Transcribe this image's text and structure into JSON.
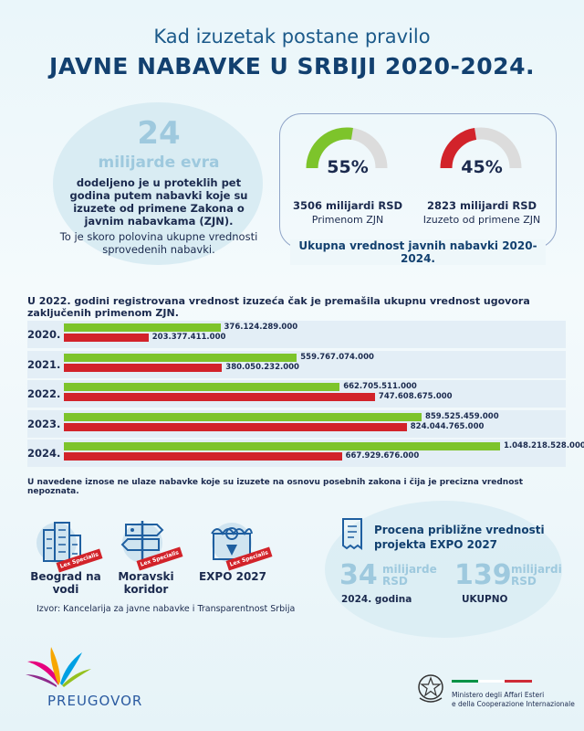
{
  "header": {
    "subtitle": "Kad izuzetak postane pravilo",
    "title": "JAVNE NABAVKE U SRBIJI 2020-2024."
  },
  "summary": {
    "amount": "24",
    "unit": "milijarde evra",
    "text_bold": "dodeljeno je u proteklih pet godina putem nabavki koje su izuzete od primene Zakona o javnim nabavkama (ZJN).",
    "text_regular": "To je skoro polovina ukupne vrednosti sprovedenih nabavki."
  },
  "gauges": {
    "caption": "Ukupna vrednost javnih nabavki 2020-2024.",
    "items": [
      {
        "percent": "55%",
        "fraction": 0.55,
        "color": "#7dc42b",
        "value": "3506 milijardi RSD",
        "label": "Primenom ZJN"
      },
      {
        "percent": "45%",
        "fraction": 0.45,
        "color": "#d2232a",
        "value": "2823 milijardi RSD",
        "label": "Izuzeto od primene ZJN"
      }
    ]
  },
  "chart_data": {
    "type": "bar",
    "title": "U 2022. godini registrovana vrednost izuzeća čak je premašila ukupnu vrednost ugovora zaključenih primenom ZJN.",
    "categories": [
      "2020.",
      "2021.",
      "2022.",
      "2023.",
      "2024."
    ],
    "series": [
      {
        "color": "#7dc42b",
        "values": [
          376124289000,
          559767074000,
          662705511000,
          859525459000,
          1048218528000
        ],
        "labels": [
          "376.124.289.000",
          "559.767.074.000",
          "662.705.511.000",
          "859.525.459.000",
          "1.048.218.528.000"
        ]
      },
      {
        "color": "#d2232a",
        "values": [
          203377411000,
          380050232000,
          747608675000,
          824044765000,
          667929676000
        ],
        "labels": [
          "203.377.411.000",
          "380.050.232.000",
          "747.608.675.000",
          "824.044.765.000",
          "667.929.676.000"
        ]
      }
    ],
    "orientation": "horizontal",
    "xlim": [
      0,
      1048218528000
    ]
  },
  "note": "U navedene iznose ne ulaze nabavke koje su izuzete na osnovu posebnih zakona i čija je precizna vrednost nepoznata.",
  "projects": [
    {
      "name": "Beograd na vodi",
      "badge": "Lex Specialis",
      "icon": "building-icon"
    },
    {
      "name": "Moravski koridor",
      "badge": "Lex Specialis",
      "icon": "signpost-icon"
    },
    {
      "name": "EXPO 2027",
      "badge": "Lex Specialis",
      "icon": "pavilion-icon"
    }
  ],
  "expo": {
    "title": "Procena približne vrednosti projekta EXPO 2027",
    "figures": [
      {
        "number": "34",
        "unit_line1": "milijarde",
        "unit_line2": "RSD",
        "caption": "2024. godina"
      },
      {
        "number": "139",
        "unit_line1": "milijardi",
        "unit_line2": "RSD",
        "caption": "UKUPNO"
      }
    ]
  },
  "source": "Izvor: Kancelarija za javne nabavke i Transparentnost Srbija",
  "footer": {
    "brand": "PREUGOVOR",
    "ministry_line1": "Ministero degli Affari Esteri",
    "ministry_line2": "e della Cooperazione Internazionale"
  }
}
